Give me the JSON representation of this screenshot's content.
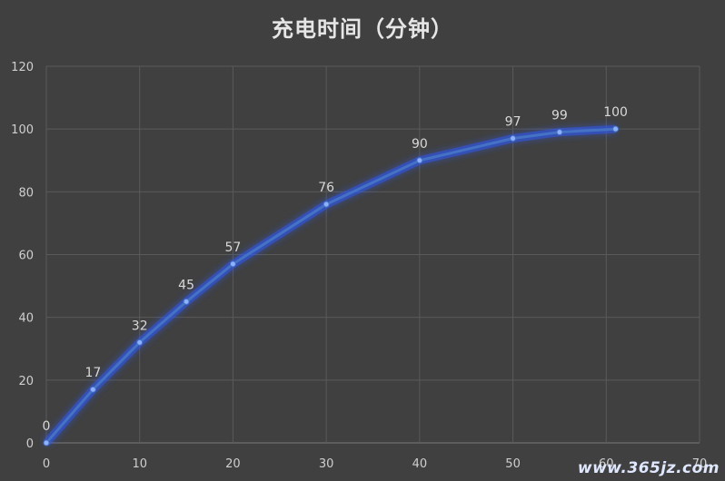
{
  "chart_data": {
    "type": "line",
    "title": "充电时间（分钟）",
    "x": [
      0,
      5,
      10,
      15,
      20,
      30,
      40,
      50,
      55,
      61
    ],
    "values": [
      0,
      17,
      32,
      45,
      57,
      76,
      90,
      97,
      99,
      100
    ],
    "xlim": [
      0,
      70
    ],
    "ylim": [
      0,
      120
    ],
    "xticks": [
      0,
      10,
      20,
      30,
      40,
      50,
      60,
      70
    ],
    "yticks": [
      0,
      20,
      40,
      60,
      80,
      100,
      120
    ],
    "grid": true,
    "show_data_labels": true,
    "colors": {
      "background": "#404040",
      "line": "#4472C4",
      "grid": "#5a5a5a",
      "text": "#cfcfcf"
    }
  },
  "watermark": "www.365jz.com"
}
